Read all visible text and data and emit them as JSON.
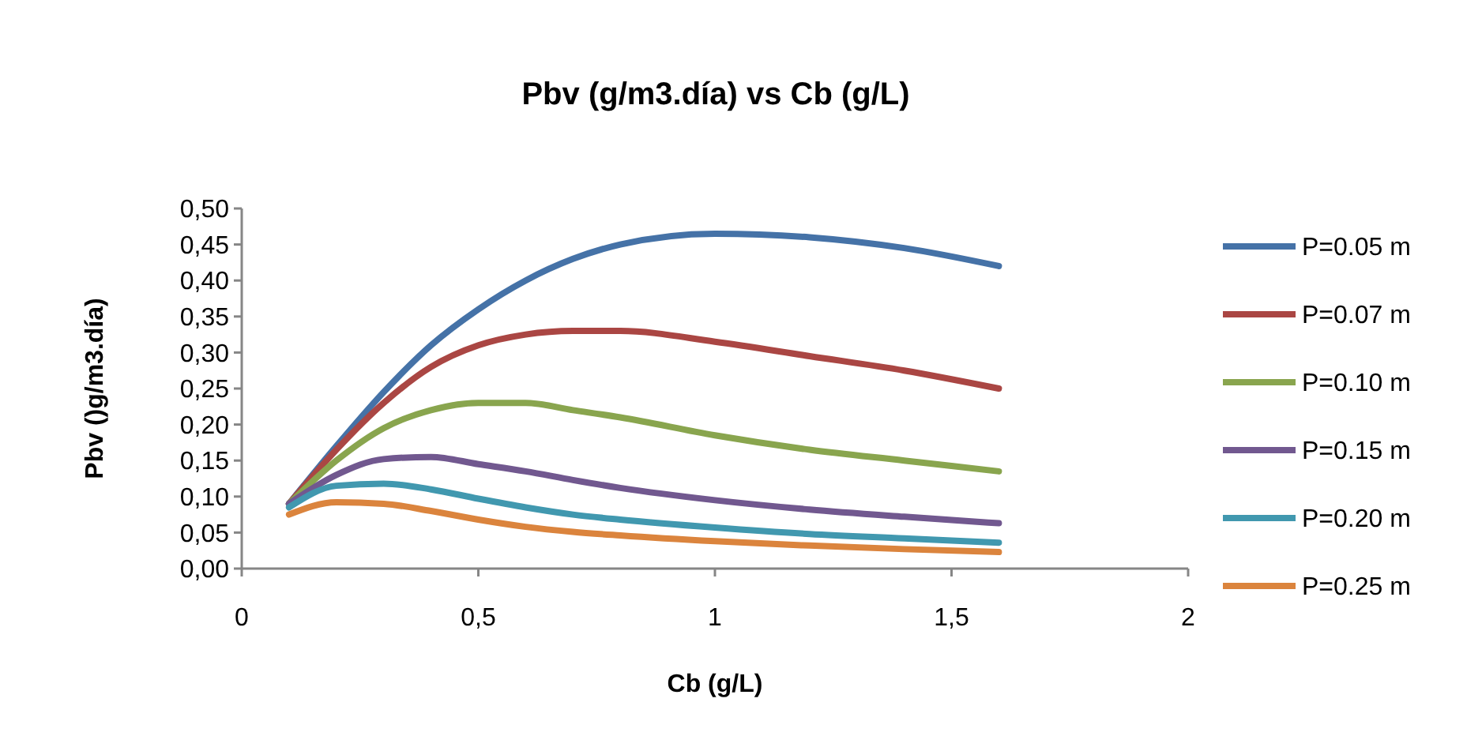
{
  "chart_data": {
    "type": "line",
    "title": "Pbv (g/m3.día) vs Cb (g/L)",
    "xlabel": "Cb (g/L)",
    "ylabel": "Pbv ()g/m3.día)",
    "x": [
      0.1,
      0.2,
      0.3,
      0.4,
      0.5,
      0.6,
      0.7,
      0.8,
      1.0,
      1.2,
      1.4,
      1.6
    ],
    "xlim": [
      0,
      2
    ],
    "xticks": [
      0,
      {
        "value": 0.5,
        "label": "0,5"
      },
      1,
      {
        "value": 1.5,
        "label": "1,5"
      },
      2
    ],
    "ylim": [
      0,
      0.5
    ],
    "yticks": [
      {
        "value": 0,
        "label": "0,00"
      },
      {
        "value": 0.05,
        "label": "0,05"
      },
      {
        "value": 0.1,
        "label": "0,10"
      },
      {
        "value": 0.15,
        "label": "0,15"
      },
      {
        "value": 0.2,
        "label": "0,20"
      },
      {
        "value": 0.25,
        "label": "0,25"
      },
      {
        "value": 0.3,
        "label": "0,30"
      },
      {
        "value": 0.35,
        "label": "0,35"
      },
      {
        "value": 0.4,
        "label": "0,40"
      },
      {
        "value": 0.45,
        "label": "0,45"
      },
      {
        "value": 0.5,
        "label": "0,50"
      }
    ],
    "grid": false,
    "legend": "right",
    "marker": "none",
    "line_style": "solid",
    "series": [
      {
        "name": "P=0.05 m",
        "color": "#4572a7",
        "values": [
          0.09,
          0.17,
          0.245,
          0.31,
          0.36,
          0.4,
          0.43,
          0.45,
          0.465,
          0.46,
          0.445,
          0.42
        ]
      },
      {
        "name": "P=0.07 m",
        "color": "#aa4643",
        "values": [
          0.09,
          0.165,
          0.23,
          0.28,
          0.31,
          0.325,
          0.33,
          0.33,
          0.315,
          0.295,
          0.275,
          0.25
        ]
      },
      {
        "name": "P=0.10 m",
        "color": "#89a54e",
        "values": [
          0.09,
          0.15,
          0.195,
          0.22,
          0.23,
          0.23,
          0.22,
          0.21,
          0.185,
          0.165,
          0.15,
          0.135
        ]
      },
      {
        "name": "P=0.15 m",
        "color": "#71588f",
        "values": [
          0.09,
          0.13,
          0.152,
          0.155,
          0.145,
          0.135,
          0.123,
          0.112,
          0.095,
          0.082,
          0.072,
          0.063
        ]
      },
      {
        "name": "P=0.20 m",
        "color": "#4198af",
        "values": [
          0.085,
          0.115,
          0.118,
          0.11,
          0.097,
          0.085,
          0.075,
          0.068,
          0.057,
          0.048,
          0.042,
          0.036
        ]
      },
      {
        "name": "P=0.25 m",
        "color": "#db843d",
        "values": [
          0.075,
          0.092,
          0.09,
          0.08,
          0.068,
          0.058,
          0.051,
          0.046,
          0.038,
          0.032,
          0.027,
          0.023
        ]
      }
    ]
  }
}
